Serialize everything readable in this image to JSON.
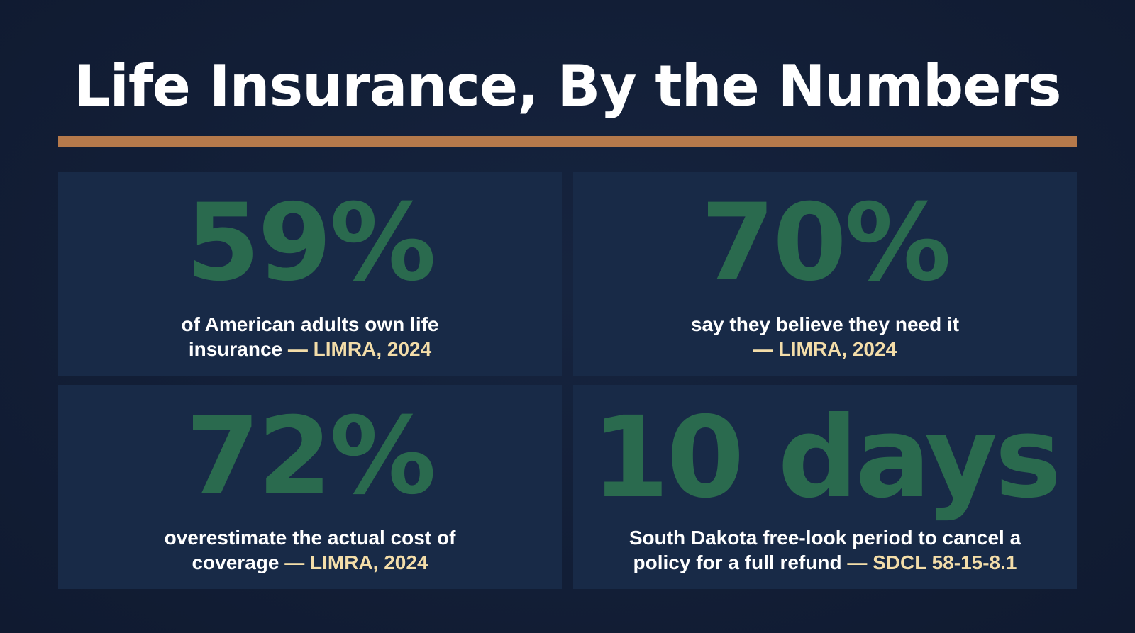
{
  "title": "Life Insurance, By the Numbers",
  "colors": {
    "background": "#13203a",
    "card": "#182a47",
    "stat_number": "#2a6a4e",
    "rule": "#b5794b",
    "source_text": "#f3dda9",
    "text": "#ffffff"
  },
  "cards": [
    {
      "stat": "59%",
      "line1": "of American adults own life",
      "line2": "insurance",
      "source": "— LIMRA, 2024"
    },
    {
      "stat": "70%",
      "line1": "say they believe they need it",
      "line2": "",
      "source": "— LIMRA, 2024"
    },
    {
      "stat": "72%",
      "line1": "overestimate the actual cost of",
      "line2": "coverage",
      "source": "— LIMRA, 2024"
    },
    {
      "stat": "10 days",
      "line1": "South Dakota free-look period to cancel a",
      "line2": "policy for a full refund",
      "source": "— SDCL 58-15-8.1"
    }
  ]
}
